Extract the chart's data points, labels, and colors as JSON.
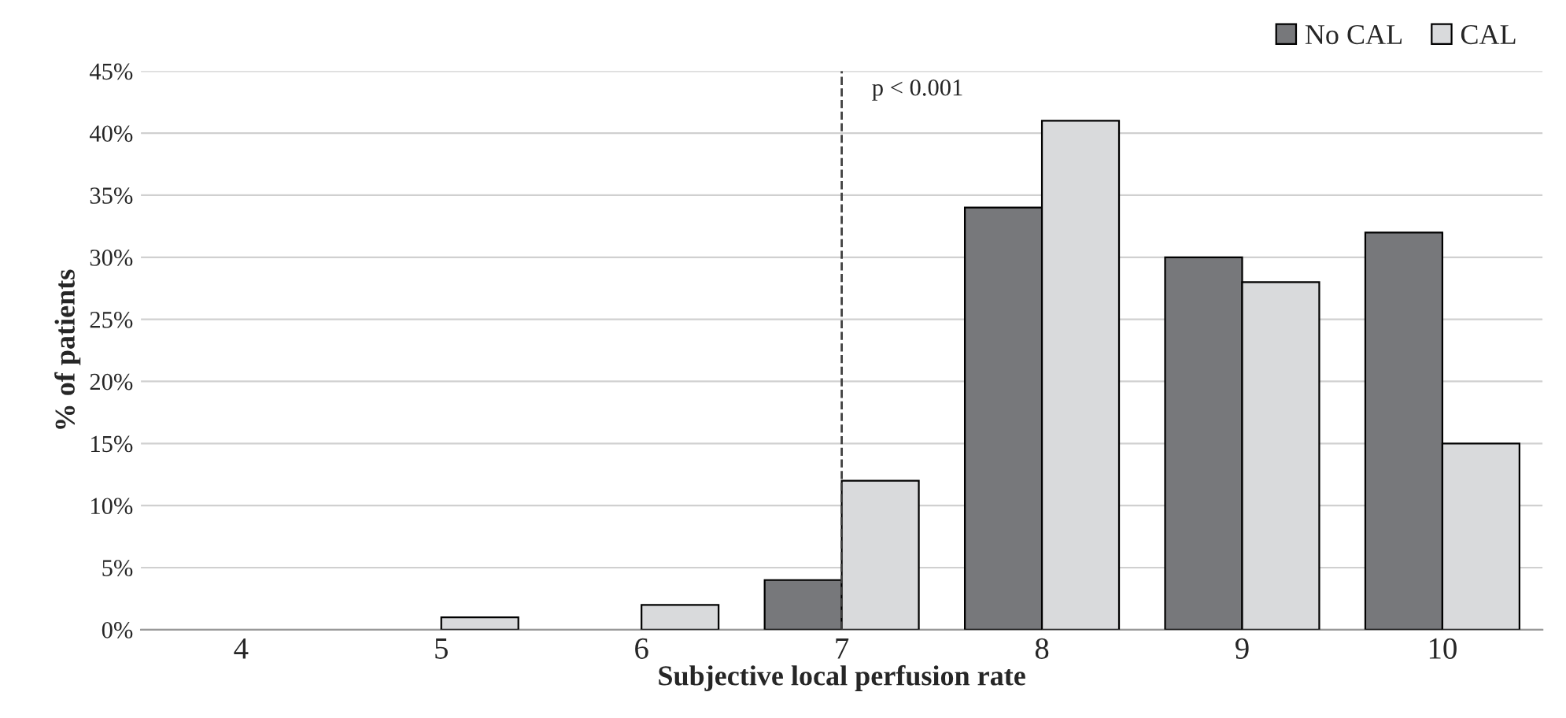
{
  "chart_data": {
    "type": "bar",
    "xlabel": "Subjective local perfusion rate",
    "ylabel": "% of patients",
    "categories": [
      "4",
      "5",
      "6",
      "7",
      "8",
      "9",
      "10"
    ],
    "series": [
      {
        "name": "No CAL",
        "color": "#77787b",
        "values": [
          0,
          0,
          0,
          4,
          34,
          30,
          32
        ]
      },
      {
        "name": "CAL",
        "color": "#d9dadc",
        "values": [
          0,
          1,
          2,
          12,
          41,
          28,
          15
        ]
      }
    ],
    "ylim": [
      0,
      45
    ],
    "yticks": [
      {
        "value": 0,
        "label": "0%"
      },
      {
        "value": 5,
        "label": "5%"
      },
      {
        "value": 10,
        "label": "10%"
      },
      {
        "value": 15,
        "label": "15%"
      },
      {
        "value": 20,
        "label": "20%"
      },
      {
        "value": 25,
        "label": "25%"
      },
      {
        "value": 30,
        "label": "30%"
      },
      {
        "value": 35,
        "label": "35%"
      },
      {
        "value": 40,
        "label": "40%"
      },
      {
        "value": 45,
        "label": "45%"
      }
    ],
    "ref_lines": [
      {
        "axis": "x",
        "value": "7",
        "color": "#404040",
        "line_style": "dashed"
      }
    ],
    "annotations": [
      {
        "text": "p < 0.001",
        "x": "7",
        "y": 43.5
      }
    ],
    "grid": "y",
    "legend": "top right"
  }
}
